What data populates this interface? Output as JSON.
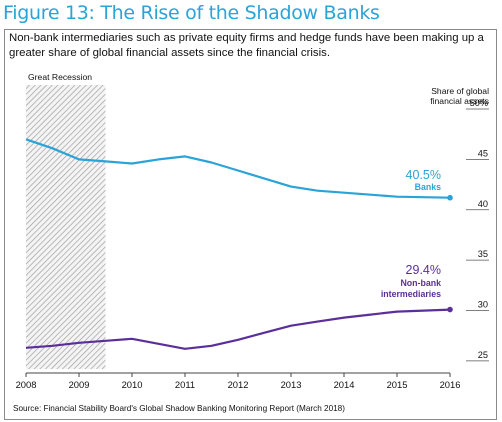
{
  "figure_title": "Figure 13: The Rise of the Shadow Banks",
  "subtitle": "Non-bank intermediaries such as private equity firms and hedge funds have been making up a greater share of global financial assets since the financial crisis.",
  "source": "Source: Financial Stability Board's Global Shadow Banking Monitoring Report (March 2018)",
  "colors": {
    "title": "#2aa3d8",
    "banks": "#2aa3d8",
    "nonbank": "#5b2f9a",
    "axis": "#333333",
    "recession_hatch": "#9a9a9a"
  },
  "chart_data": {
    "type": "line",
    "x_ticks": [
      "2008",
      "2009",
      "2010",
      "2011",
      "2012",
      "2013",
      "2014",
      "2015",
      "2016"
    ],
    "xlim": [
      2008,
      2016
    ],
    "ylim": [
      23.5,
      50
    ],
    "ylabel": "Share of global financial assets",
    "y_ticks": [
      "25",
      "30",
      "35",
      "40",
      "45",
      "50%"
    ],
    "grid": false,
    "shaded_region": {
      "label": "Great Recession",
      "x_start": 2008,
      "x_end": 2009.5
    },
    "series": [
      {
        "name": "Banks",
        "color": "#2aa3d8",
        "x": [
          2008,
          2008.5,
          2009,
          2009.5,
          2010,
          2010.5,
          2011,
          2011.5,
          2012,
          2012.5,
          2013,
          2013.5,
          2014,
          2014.5,
          2015,
          2015.5,
          2016
        ],
        "values": [
          46.3,
          45.4,
          44.3,
          44.1,
          43.9,
          44.3,
          44.6,
          44.0,
          43.2,
          42.4,
          41.6,
          41.2,
          41.0,
          40.8,
          40.6,
          40.55,
          40.5
        ],
        "end_label_value": "40.5%"
      },
      {
        "name": "Non-bank intermediaries",
        "color": "#5b2f9a",
        "x": [
          2008,
          2008.5,
          2009,
          2009.5,
          2010,
          2010.5,
          2011,
          2011.5,
          2012,
          2012.5,
          2013,
          2013.5,
          2014,
          2014.5,
          2015,
          2015.5,
          2016
        ],
        "values": [
          25.6,
          25.8,
          26.1,
          26.3,
          26.5,
          26.0,
          25.5,
          25.8,
          26.4,
          27.1,
          27.8,
          28.2,
          28.6,
          28.9,
          29.2,
          29.3,
          29.4
        ],
        "end_label_value": "29.4%",
        "label_lines": [
          "Non-bank",
          "intermediaries"
        ]
      }
    ]
  }
}
